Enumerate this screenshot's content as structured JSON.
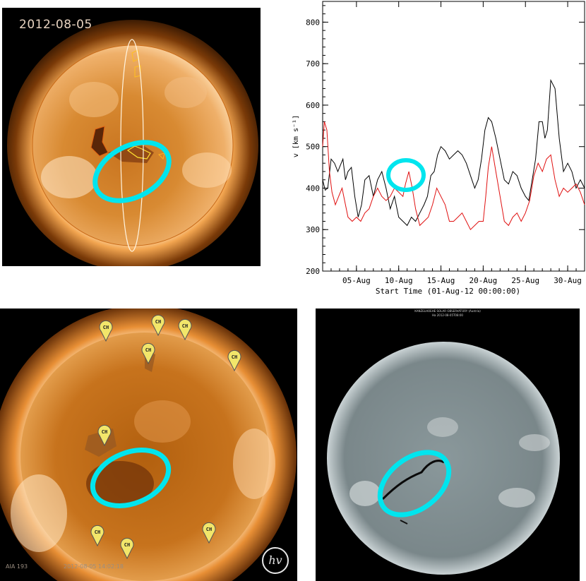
{
  "panels": {
    "top_left": {
      "date": "2012-08-05"
    },
    "top_right": {
      "chart_data": {
        "type": "line",
        "ylabel": "v [km s⁻¹]",
        "xlabel": "Start Time (01-Aug-12 00:00:00)",
        "ylim": [
          200,
          850
        ],
        "xlim": [
          1,
          32
        ],
        "yticks": [
          200,
          300,
          400,
          500,
          600,
          700,
          800
        ],
        "ytick_labels": [
          "200",
          "300",
          "400",
          "500",
          "600",
          "700",
          "800"
        ],
        "xticks": [
          5,
          10,
          15,
          20,
          25,
          30
        ],
        "xtick_labels": [
          "05-Aug",
          "10-Aug",
          "15-Aug",
          "20-Aug",
          "25-Aug",
          "30-Aug"
        ],
        "grid": false,
        "series": [
          {
            "color": "#000000",
            "x": [
              1.0,
              1.3,
              1.6,
              2.0,
              2.4,
              2.8,
              3.1,
              3.4,
              3.7,
              4.0,
              4.4,
              4.8,
              5.2,
              5.6,
              6.0,
              6.5,
              7.0,
              7.5,
              8.0,
              8.5,
              9.0,
              9.5,
              10.0,
              10.5,
              11.0,
              11.5,
              12.0,
              12.5,
              13.0,
              13.4,
              13.8,
              14.2,
              14.6,
              15.0,
              15.5,
              16.0,
              16.5,
              17.0,
              17.5,
              18.0,
              18.5,
              19.0,
              19.4,
              19.8,
              20.2,
              20.6,
              21.0,
              21.5,
              22.0,
              22.5,
              23.0,
              23.5,
              24.0,
              24.5,
              25.0,
              25.4,
              25.8,
              26.2,
              26.6,
              27.0,
              27.3,
              27.6,
              28.0,
              28.5,
              29.0,
              29.5,
              30.0,
              30.5,
              31.0,
              31.5,
              32.0
            ],
            "y": [
              420,
              395,
              400,
              470,
              460,
              440,
              455,
              470,
              420,
              440,
              450,
              380,
              330,
              360,
              420,
              430,
              380,
              420,
              440,
              400,
              350,
              380,
              330,
              320,
              310,
              330,
              320,
              340,
              360,
              380,
              430,
              440,
              480,
              500,
              490,
              470,
              480,
              490,
              480,
              460,
              430,
              400,
              420,
              470,
              540,
              570,
              560,
              520,
              470,
              420,
              410,
              440,
              430,
              400,
              380,
              370,
              420,
              470,
              560,
              560,
              520,
              540,
              660,
              640,
              520,
              440,
              460,
              440,
              400,
              420,
              400
            ]
          },
          {
            "color": "#e01010",
            "x": [
              1.0,
              1.2,
              1.5,
              1.8,
              2.1,
              2.5,
              2.9,
              3.3,
              3.7,
              4.0,
              4.5,
              5.0,
              5.5,
              6.0,
              6.5,
              7.0,
              7.5,
              8.0,
              8.5,
              9.0,
              9.5,
              10.0,
              10.5,
              10.8,
              11.2,
              11.6,
              12.0,
              12.5,
              13.0,
              13.5,
              14.0,
              14.5,
              15.0,
              15.5,
              16.0,
              16.5,
              17.0,
              17.5,
              18.0,
              18.5,
              19.0,
              19.5,
              20.0,
              20.3,
              20.6,
              21.0,
              21.5,
              22.0,
              22.5,
              23.0,
              23.5,
              24.0,
              24.5,
              25.0,
              25.5,
              26.0,
              26.5,
              27.0,
              27.5,
              28.0,
              28.5,
              29.0,
              29.5,
              30.0,
              30.5,
              31.0,
              31.5,
              32.0
            ],
            "y": [
              500,
              560,
              540,
              440,
              390,
              360,
              380,
              400,
              360,
              330,
              320,
              330,
              320,
              340,
              350,
              380,
              400,
              380,
              370,
              380,
              400,
              390,
              380,
              410,
              440,
              400,
              350,
              310,
              320,
              330,
              360,
              400,
              380,
              360,
              320,
              320,
              330,
              340,
              320,
              300,
              310,
              320,
              320,
              380,
              450,
              500,
              440,
              380,
              320,
              310,
              330,
              340,
              320,
              340,
              370,
              430,
              460,
              440,
              470,
              480,
              420,
              380,
              400,
              390,
              400,
              410,
              390,
              360
            ]
          }
        ]
      }
    },
    "bottom_left": {
      "markers": [
        "CH",
        "CH",
        "CH",
        "CH",
        "CH",
        "CH",
        "CH",
        "CH",
        "CH"
      ],
      "caption_left": "AIA 193",
      "caption_right": "2012-08-05 14:02:18",
      "logo_text": "hv"
    },
    "bottom_right": {
      "header_line1": "KANZELHOEHE SOLAR OBSERVATORY (Austria)",
      "header_line2": "Ha 2012-08-05T08:00"
    },
    "highlight_color": "#00e5ee",
    "colors": {
      "sun_orange": "#d98a2c",
      "corona_glow": "#ffd9a0",
      "halpha_gray": "#7d8a8e"
    }
  }
}
